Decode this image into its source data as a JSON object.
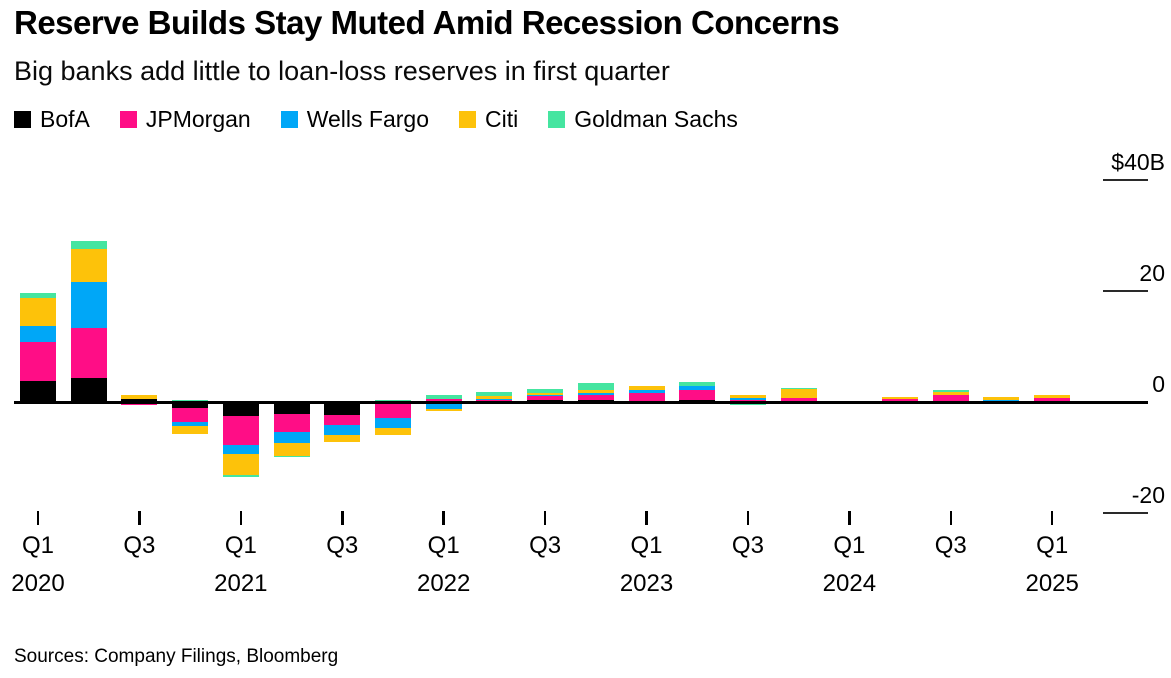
{
  "header": {
    "title": "Reserve Builds Stay Muted Amid Recession Concerns",
    "subtitle": "Big banks add little to loan-loss reserves in first quarter"
  },
  "source": "Sources: Company Filings, Bloomberg",
  "chart_data": {
    "type": "bar",
    "stacked": true,
    "unit": "$B",
    "title": "Reserve Builds Stay Muted Amid Recession Concerns",
    "subtitle": "Big banks add little to loan-loss reserves in first quarter",
    "legend_position": "top",
    "grid": "right-tick-segments",
    "categories": [
      "Q1 2020",
      "Q2 2020",
      "Q3 2020",
      "Q4 2020",
      "Q1 2021",
      "Q2 2021",
      "Q3 2021",
      "Q4 2021",
      "Q1 2022",
      "Q2 2022",
      "Q3 2022",
      "Q4 2022",
      "Q1 2023",
      "Q2 2023",
      "Q3 2023",
      "Q4 2023",
      "Q1 2024",
      "Q2 2024",
      "Q3 2024",
      "Q4 2024",
      "Q1 2025"
    ],
    "series": [
      {
        "name": "BofA",
        "color": "#000000",
        "values": [
          3.8,
          4.4,
          0.6,
          -1.1,
          -2.5,
          -2.2,
          -2.4,
          0,
          0,
          0,
          0.35,
          0.35,
          0.15,
          0.35,
          0.2,
          0,
          0,
          0,
          0,
          0,
          0
        ]
      },
      {
        "name": "JPMorgan",
        "color": "#FF0D86",
        "values": [
          7.0,
          8.9,
          -0.6,
          -2.5,
          -5.2,
          -3.2,
          -1.8,
          -2.9,
          0.55,
          0.35,
          0.65,
          1.0,
          1.4,
          1.8,
          0.2,
          0.7,
          0,
          0.6,
          1.3,
          0.2,
          0.8
        ]
      },
      {
        "name": "Wells Fargo",
        "color": "#00A7F7",
        "values": [
          2.9,
          8.4,
          0,
          -0.75,
          -1.6,
          -1.9,
          -1.7,
          -1.7,
          -1.35,
          0.25,
          0.35,
          0.35,
          0.55,
          0.7,
          0.4,
          0,
          -0.45,
          0,
          0,
          0.2,
          0
        ]
      },
      {
        "name": "Citi",
        "color": "#FDC20A",
        "values": [
          5.0,
          5.8,
          0.6,
          -1.45,
          -3.8,
          -2.4,
          -1.3,
          -1.4,
          -0.25,
          0.4,
          0.35,
          0.55,
          0.7,
          0,
          0.55,
          1.6,
          0.25,
          0.35,
          0.55,
          0.5,
          0.4
        ]
      },
      {
        "name": "Goldman Sachs",
        "color": "#45E5A0",
        "values": [
          1.0,
          1.5,
          0,
          0.3,
          -0.35,
          -0.3,
          0,
          0.4,
          0.7,
          0.75,
          0.7,
          1.25,
          -0.4,
          0.7,
          -0.55,
          0.3,
          0,
          -0.3,
          0.35,
          0,
          -0.25
        ]
      }
    ],
    "y_axis": {
      "side": "right",
      "ylim": [
        -25,
        44
      ],
      "ticks": [
        {
          "label": "$40B",
          "value": 40
        },
        {
          "label": "20",
          "value": 20
        },
        {
          "label": "0",
          "value": 0
        },
        {
          "label": "-20",
          "value": -20
        }
      ]
    },
    "x_axis": {
      "ticks": [
        {
          "label": "Q1",
          "year": "2020",
          "index": 0
        },
        {
          "label": "Q3",
          "index": 2
        },
        {
          "label": "Q1",
          "year": "2021",
          "index": 4
        },
        {
          "label": "Q3",
          "index": 6
        },
        {
          "label": "Q1",
          "year": "2022",
          "index": 8
        },
        {
          "label": "Q3",
          "index": 10
        },
        {
          "label": "Q1",
          "year": "2023",
          "index": 12
        },
        {
          "label": "Q3",
          "index": 14
        },
        {
          "label": "Q1",
          "year": "2024",
          "index": 16
        },
        {
          "label": "Q3",
          "index": 18
        },
        {
          "label": "Q1",
          "year": "2025",
          "index": 20
        }
      ]
    }
  }
}
